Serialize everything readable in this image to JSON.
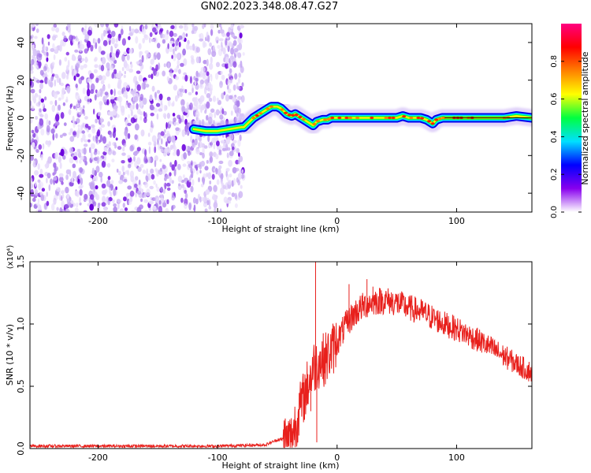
{
  "title": "GN02.2023.348.08.47.G27",
  "chart_data": [
    {
      "type": "heatmap",
      "name": "spectrogram",
      "xlabel": "Height of straight line (km)",
      "ylabel": "Frequency (Hz)",
      "xlim": [
        -257,
        163
      ],
      "ylim": [
        -50,
        50
      ],
      "xticks": [
        -200,
        -100,
        0,
        100
      ],
      "yticks": [
        40,
        20,
        0,
        -20,
        -40
      ],
      "colorbar": {
        "label": "Normalized spectral amplitude",
        "range": [
          0,
          1
        ],
        "ticks": [
          "0.0",
          "0.2",
          "0.4",
          "0.6",
          "0.8"
        ],
        "colors": [
          "#ffffff",
          "#8800ee",
          "#0000ff",
          "#00e0ff",
          "#00ff40",
          "#ffff00",
          "#ff8000",
          "#ff0000",
          "#ff0080"
        ]
      },
      "noise_region": {
        "x": [
          -257,
          -78
        ],
        "y": [
          -50,
          50
        ]
      },
      "ridge": {
        "x": [
          -120,
          -110,
          -100,
          -90,
          -80,
          -78,
          -70,
          -60,
          -55,
          -50,
          -47,
          -42,
          -38,
          -35,
          -30,
          -25,
          -20,
          -17,
          -12,
          -8,
          -5,
          0,
          10,
          20,
          30,
          40,
          50,
          55,
          60,
          70,
          75,
          80,
          83,
          88,
          95,
          100,
          110,
          120,
          130,
          140,
          150,
          163
        ],
        "y": [
          -6,
          -7,
          -7,
          -6,
          -5,
          -5,
          0,
          4,
          6,
          6,
          5,
          2,
          1,
          2,
          0,
          -2,
          -4,
          -2,
          -1,
          -1,
          0,
          0,
          0,
          0,
          0,
          0,
          0,
          1,
          0,
          0,
          -1,
          -3,
          -1,
          0,
          0,
          0,
          0,
          0,
          0,
          0,
          1,
          0
        ]
      }
    },
    {
      "type": "line",
      "name": "snr",
      "xlabel": "Height of straight line (km)",
      "ylabel": "SNR (10 * v/v)",
      "yscale_label": "(x10⁴)",
      "xlim": [
        -257,
        163
      ],
      "ylim": [
        0,
        1.5
      ],
      "xticks": [
        -200,
        -100,
        0,
        100
      ],
      "yticks": [
        "0.0",
        "0.5",
        "1.0",
        "1.5"
      ],
      "color": "#e8201c",
      "envelope": {
        "x": [
          -257,
          -200,
          -100,
          -60,
          -50,
          -40,
          -38,
          -35,
          -30,
          -25,
          -20,
          -15,
          -10,
          -5,
          0,
          5,
          10,
          15,
          20,
          25,
          30,
          40,
          50,
          60,
          70,
          80,
          90,
          100,
          110,
          120,
          130,
          140,
          150,
          163
        ],
        "y": [
          0.02,
          0.02,
          0.02,
          0.03,
          0.07,
          0.08,
          0.08,
          0.2,
          0.35,
          0.5,
          0.65,
          0.7,
          0.72,
          0.78,
          0.86,
          0.95,
          1.03,
          1.09,
          1.13,
          1.16,
          1.18,
          1.19,
          1.17,
          1.13,
          1.1,
          1.05,
          1.0,
          0.96,
          0.91,
          0.86,
          0.8,
          0.74,
          0.68,
          0.61
        ]
      },
      "spikes": [
        {
          "x": -18,
          "y": 1.5
        },
        {
          "x": -22,
          "y": 0.3
        },
        {
          "x": -17,
          "y": 0.05
        },
        {
          "x": 25,
          "y": 1.36
        },
        {
          "x": 30,
          "y": 1.3
        },
        {
          "x": 10,
          "y": 1.32
        }
      ]
    }
  ]
}
